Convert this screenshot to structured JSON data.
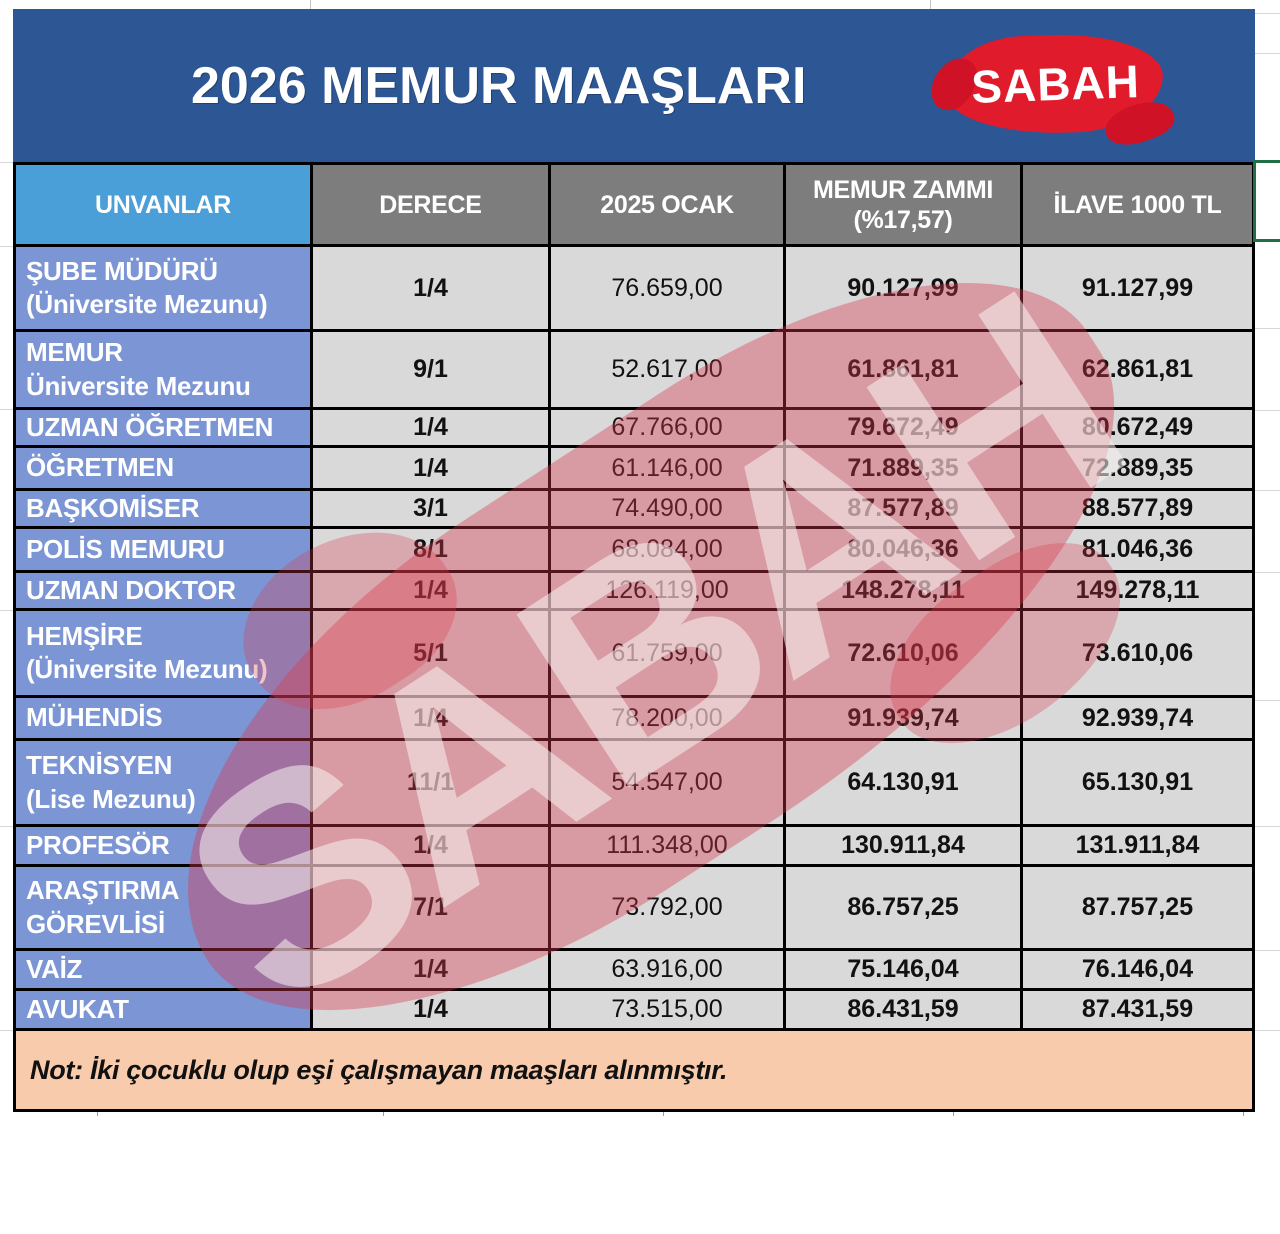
{
  "title_bar": {
    "title": "2026 MEMUR MAAŞLARI",
    "logo_text": "SABAH"
  },
  "watermark_text": "SABAH",
  "table": {
    "headers": {
      "unvanlar": "UNVANLAR",
      "derece": "DERECE",
      "ocak_2025": "2025 OCAK",
      "zam_line1": "MEMUR ZAMMI",
      "zam_line2": "(%17,57)",
      "ilave": "İLAVE 1000 TL"
    },
    "rows": [
      {
        "unvan": [
          "ŞUBE MÜDÜRÜ",
          "(Üniversite Mezunu)"
        ],
        "derece": "1/4",
        "ocak_2025": "76.659,00",
        "memur_zammi": "90.127,99",
        "ilave_1000": "91.127,99"
      },
      {
        "unvan": [
          "MEMUR",
          "Üniversite Mezunu"
        ],
        "derece": "9/1",
        "ocak_2025": "52.617,00",
        "memur_zammi": "61.861,81",
        "ilave_1000": "62.861,81"
      },
      {
        "unvan": [
          "UZMAN ÖĞRETMEN"
        ],
        "derece": "1/4",
        "ocak_2025": "67.766,00",
        "memur_zammi": "79.672,49",
        "ilave_1000": "80.672,49"
      },
      {
        "unvan": [
          "ÖĞRETMEN"
        ],
        "derece": "1/4",
        "ocak_2025": "61.146,00",
        "memur_zammi": "71.889,35",
        "ilave_1000": "72.889,35"
      },
      {
        "unvan": [
          "BAŞKOMİSER"
        ],
        "derece": "3/1",
        "ocak_2025": "74.490,00",
        "memur_zammi": "87.577,89",
        "ilave_1000": "88.577,89"
      },
      {
        "unvan": [
          "POLİS MEMURU"
        ],
        "derece": "8/1",
        "ocak_2025": "68.084,00",
        "memur_zammi": "80.046,36",
        "ilave_1000": "81.046,36"
      },
      {
        "unvan": [
          "UZMAN DOKTOR"
        ],
        "derece": "1/4",
        "ocak_2025": "126.119,00",
        "memur_zammi": "148.278,11",
        "ilave_1000": "149.278,11"
      },
      {
        "unvan": [
          "HEMŞİRE",
          "(Üniversite Mezunu)"
        ],
        "derece": "5/1",
        "ocak_2025": "61.759,00",
        "memur_zammi": "72.610,06",
        "ilave_1000": "73.610,06"
      },
      {
        "unvan": [
          "MÜHENDİS"
        ],
        "derece": "1/4",
        "ocak_2025": "78.200,00",
        "memur_zammi": "91.939,74",
        "ilave_1000": "92.939,74"
      },
      {
        "unvan": [
          "TEKNİSYEN",
          "(Lise Mezunu)"
        ],
        "derece": "11/1",
        "ocak_2025": "54.547,00",
        "memur_zammi": "64.130,91",
        "ilave_1000": "65.130,91"
      },
      {
        "unvan": [
          "PROFESÖR"
        ],
        "derece": "1/4",
        "ocak_2025": "111.348,00",
        "memur_zammi": "130.911,84",
        "ilave_1000": "131.911,84"
      },
      {
        "unvan": [
          "ARAŞTIRMA",
          "GÖREVLİSİ"
        ],
        "derece": "7/1",
        "ocak_2025": "73.792,00",
        "memur_zammi": "86.757,25",
        "ilave_1000": "87.757,25"
      },
      {
        "unvan": [
          "VAİZ"
        ],
        "derece": "1/4",
        "ocak_2025": "63.916,00",
        "memur_zammi": "75.146,04",
        "ilave_1000": "76.146,04"
      },
      {
        "unvan": [
          "AVUKAT"
        ],
        "derece": "1/4",
        "ocak_2025": "73.515,00",
        "memur_zammi": "86.431,59",
        "ilave_1000": "87.431,59"
      }
    ],
    "note": "Not: İki çocuklu olup eşi çalışmayan maaşları alınmıştır."
  },
  "colors": {
    "title_bg": "#2d5695",
    "logo_red": "#e01b2c",
    "header_gray": "#7d7d7d",
    "unvanlar_header_blue": "#4a9fd8",
    "label_blue": "#7c95d4",
    "cell_gray": "#d9d9d9",
    "note_bg": "#f8cbad",
    "border_black": "#000000",
    "selection_green": "#1f7145",
    "watermark_red": "#db374b"
  }
}
